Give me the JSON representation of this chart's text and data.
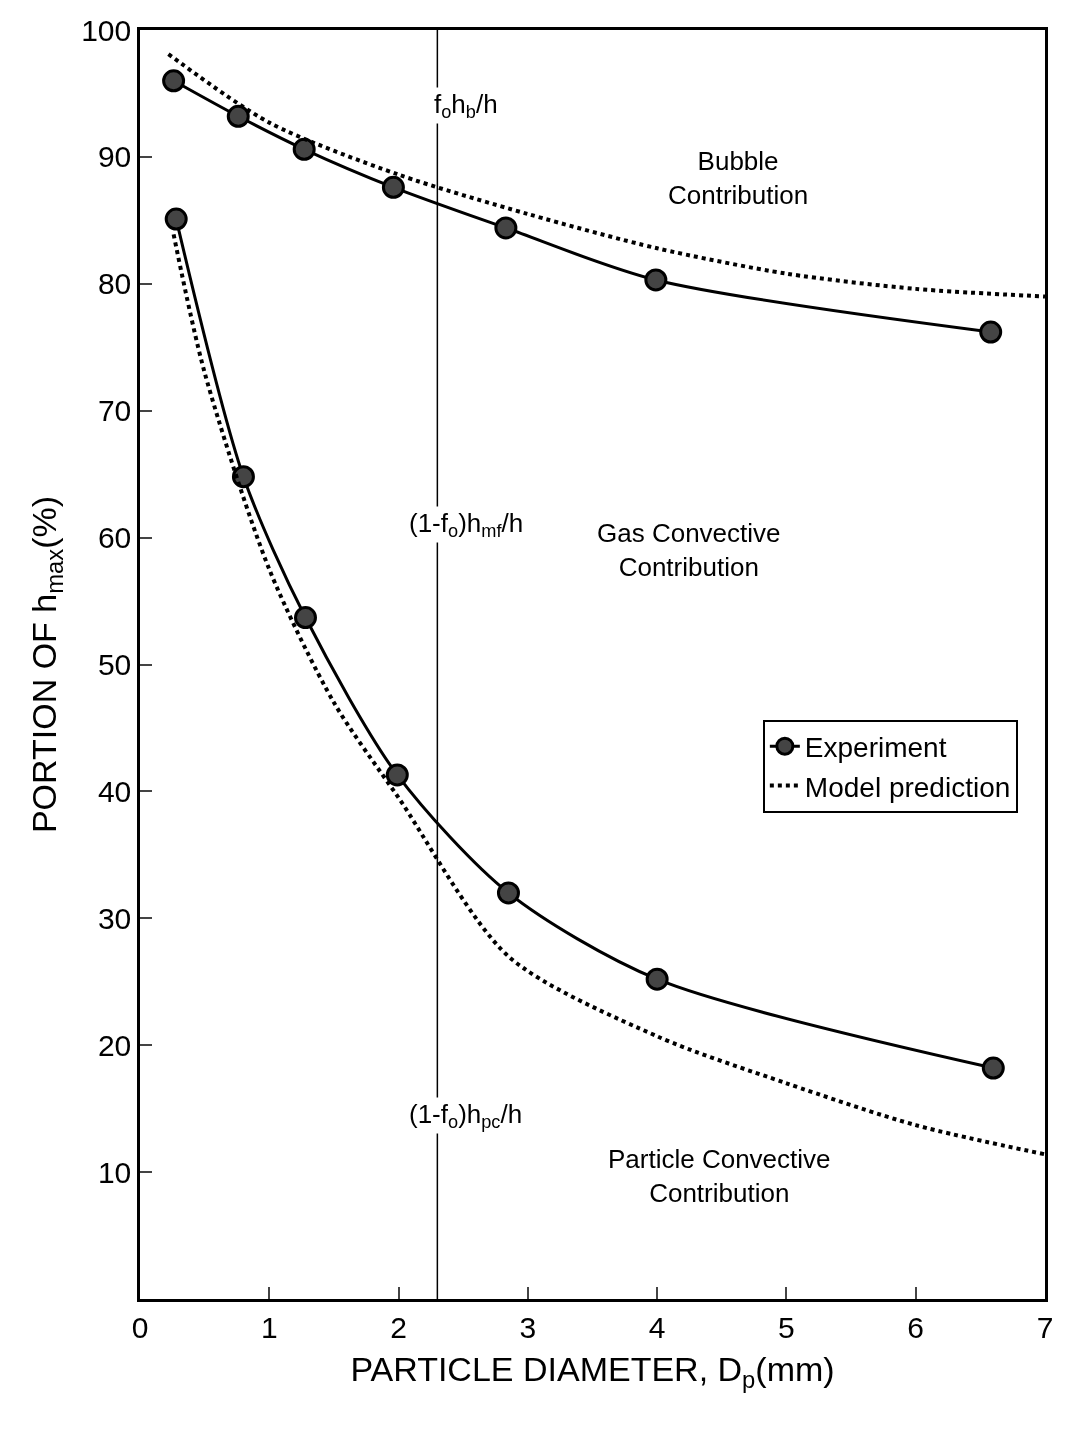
{
  "chart_data": {
    "type": "line",
    "xlabel": "PARTICLE DIAMETER, D$_{p}$(mm)",
    "ylabel": "PORTION OF h$_{max}$(%)",
    "xlim": [
      0,
      7
    ],
    "ylim": [
      0,
      100
    ],
    "xticks": [
      0,
      1,
      2,
      3,
      4,
      5,
      6,
      7
    ],
    "yticks": [
      10,
      20,
      30,
      40,
      50,
      60,
      70,
      80,
      90,
      100
    ],
    "legend": "right",
    "series": [
      {
        "name": "Experiment",
        "color": "#000000",
        "marker": "circle",
        "line_style": "solid",
        "x": [
          0.26,
          0.76,
          1.27,
          1.96,
          2.83,
          3.99,
          6.58
        ],
        "values": [
          96,
          93.2,
          90.6,
          87.6,
          84.4,
          80.3,
          76.2
        ]
      },
      {
        "name": "Model prediction",
        "color": "#000000",
        "marker": "none",
        "line_style": "dotted",
        "x": [
          0.22,
          1,
          2,
          3,
          4,
          5,
          6,
          7
        ],
        "values": [
          98.1,
          92.7,
          88.6,
          85.5,
          82.8,
          80.8,
          79.6,
          79.0
        ]
      },
      {
        "color": "#000000",
        "marker": "circle",
        "line_style": "solid",
        "x": [
          0.28,
          0.8,
          1.28,
          1.99,
          2.85,
          4.0,
          6.6
        ],
        "values": [
          85.1,
          64.8,
          53.7,
          41.3,
          32.0,
          25.2,
          18.2
        ]
      },
      {
        "color": "#000000",
        "marker": "none",
        "line_style": "dotted",
        "x": [
          0.26,
          0.5,
          1,
          1.5,
          2,
          2.85,
          4,
          5,
          6,
          7
        ],
        "values": [
          83.9,
          73,
          57.5,
          47,
          39.5,
          27,
          20.7,
          17,
          13.7,
          11.4
        ]
      }
    ],
    "ref_lines": [
      {
        "axis": "x",
        "value": 2.3,
        "color": "#000000",
        "line_style": "solid"
      }
    ],
    "annotations": [
      "f$_{o}$h$_{b}$/h",
      "(1-f$_{o}$)h$_{mf}$/h",
      "(1-f$_{o}$)h$_{pc}$/h",
      "Bubble\nContribution",
      "Gas Convective\nContribution",
      "Particle Convective\nContribution"
    ]
  }
}
